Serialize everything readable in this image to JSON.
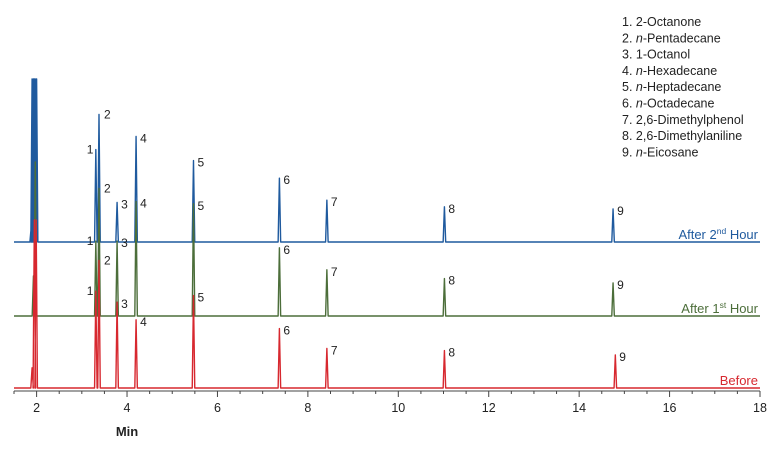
{
  "chart_data": {
    "type": "line",
    "xlabel": "Min",
    "xlim": [
      1.5,
      18
    ],
    "x_ticks": [
      2,
      4,
      6,
      8,
      10,
      12,
      14,
      16,
      18
    ],
    "x_tick_labels": [
      "2",
      "4",
      "6",
      "8",
      "10",
      "12",
      "14",
      "16",
      "18"
    ],
    "legend": [
      {
        "prefix": "1. ",
        "italic": "",
        "suffix": "2-Octanone"
      },
      {
        "prefix": "2. ",
        "italic": "n",
        "suffix": "-Pentadecane"
      },
      {
        "prefix": "3. ",
        "italic": "",
        "suffix": "1-Octanol"
      },
      {
        "prefix": "4. ",
        "italic": "n",
        "suffix": "-Hexadecane"
      },
      {
        "prefix": "5. ",
        "italic": "n",
        "suffix": "-Heptadecane"
      },
      {
        "prefix": "6. ",
        "italic": "n",
        "suffix": "-Octadecane"
      },
      {
        "prefix": "7. ",
        "italic": "",
        "suffix": "2,6-Dimethylphenol"
      },
      {
        "prefix": "8. ",
        "italic": "",
        "suffix": "2,6-Dimethylaniline"
      },
      {
        "prefix": "9. ",
        "italic": "n",
        "suffix": "-Eicosane"
      }
    ],
    "legend_placement": "top-right",
    "series": [
      {
        "label_main": "After 2",
        "label_sup": "nd",
        "label_tail": " Hour",
        "color": "#1f5a9e",
        "solvent_peaks": [
          {
            "rt": 1.9,
            "height": 1.0
          },
          {
            "rt": 1.93,
            "height": 1.0
          },
          {
            "rt": 1.95,
            "height": 1.0
          },
          {
            "rt": 1.97,
            "height": 1.0
          },
          {
            "rt": 2.0,
            "height": 1.0
          },
          {
            "rt": 1.88,
            "height": 0.09
          }
        ],
        "peaks": [
          {
            "label": "1",
            "rt": 3.31,
            "height": 0.42
          },
          {
            "label": "2",
            "rt": 3.38,
            "height": 0.58
          },
          {
            "label": "3",
            "rt": 3.78,
            "height": 0.18
          },
          {
            "label": "4",
            "rt": 4.2,
            "height": 0.48
          },
          {
            "label": "5",
            "rt": 5.47,
            "height": 0.37
          },
          {
            "label": "6",
            "rt": 7.37,
            "height": 0.29
          },
          {
            "label": "7",
            "rt": 8.42,
            "height": 0.19
          },
          {
            "label": "8",
            "rt": 11.02,
            "height": 0.16
          },
          {
            "label": "9",
            "rt": 14.75,
            "height": 0.15
          }
        ]
      },
      {
        "label_main": "After 1",
        "label_sup": "st",
        "label_tail": " Hour",
        "color": "#4c6e3a",
        "solvent_peaks": [
          {
            "rt": 1.97,
            "height": 1.0
          },
          {
            "rt": 1.93,
            "height": 0.26
          }
        ],
        "peaks": [
          {
            "label": "1",
            "rt": 3.31,
            "height": 0.34
          },
          {
            "label": "2",
            "rt": 3.38,
            "height": 0.58
          },
          {
            "label": "3",
            "rt": 3.78,
            "height": 0.34
          },
          {
            "label": "4",
            "rt": 4.2,
            "height": 0.52
          },
          {
            "label": "5",
            "rt": 5.47,
            "height": 0.51
          },
          {
            "label": "6",
            "rt": 7.37,
            "height": 0.31
          },
          {
            "label": "7",
            "rt": 8.42,
            "height": 0.21
          },
          {
            "label": "8",
            "rt": 11.02,
            "height": 0.17
          },
          {
            "label": "9",
            "rt": 14.75,
            "height": 0.15
          }
        ]
      },
      {
        "label_main": "Before",
        "label_sup": "",
        "label_tail": "",
        "color": "#d7282f",
        "solvent_peaks": [
          {
            "rt": 1.95,
            "height": 1.0
          },
          {
            "rt": 1.99,
            "height": 1.0
          },
          {
            "rt": 1.9,
            "height": 0.12
          }
        ],
        "peaks": [
          {
            "label": "1",
            "rt": 3.31,
            "height": 0.44
          },
          {
            "label": "2",
            "rt": 3.38,
            "height": 0.58
          },
          {
            "label": "3",
            "rt": 3.78,
            "height": 0.39
          },
          {
            "label": "4",
            "rt": 4.2,
            "height": 0.31
          },
          {
            "label": "5",
            "rt": 5.47,
            "height": 0.42
          },
          {
            "label": "6",
            "rt": 7.37,
            "height": 0.27
          },
          {
            "label": "7",
            "rt": 8.42,
            "height": 0.18
          },
          {
            "label": "8",
            "rt": 11.02,
            "height": 0.17
          },
          {
            "label": "9",
            "rt": 14.8,
            "height": 0.15
          }
        ]
      }
    ]
  }
}
